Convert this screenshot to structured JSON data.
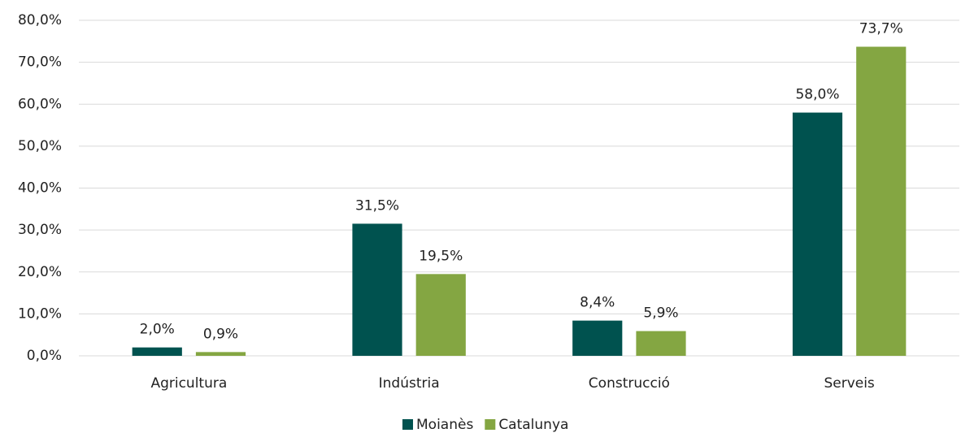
{
  "chart_data": {
    "type": "bar",
    "categories": [
      "Agricultura",
      "Indústria",
      "Construcció",
      "Serveis"
    ],
    "series": [
      {
        "name": "Moianès",
        "color": "#00524f",
        "values": [
          2.0,
          31.5,
          8.4,
          58.0
        ],
        "value_labels": [
          "2,0%",
          "31,5%",
          "8,4%",
          "58,0%"
        ]
      },
      {
        "name": "Catalunya",
        "color": "#84a642",
        "values": [
          0.9,
          19.5,
          5.9,
          73.7
        ],
        "value_labels": [
          "0,9%",
          "19,5%",
          "5,9%",
          "73,7%"
        ]
      }
    ],
    "ylim": [
      0,
      80
    ],
    "yticks": [
      {
        "value": 0,
        "label": "0,0%"
      },
      {
        "value": 10,
        "label": "10,0%"
      },
      {
        "value": 20,
        "label": "20,0%"
      },
      {
        "value": 30,
        "label": "30,0%"
      },
      {
        "value": 40,
        "label": "40,0%"
      },
      {
        "value": 50,
        "label": "50,0%"
      },
      {
        "value": 60,
        "label": "60,0%"
      },
      {
        "value": 70,
        "label": "70,0%"
      },
      {
        "value": 80,
        "label": "80,0%"
      }
    ],
    "grid": true,
    "legend": "bottom"
  }
}
